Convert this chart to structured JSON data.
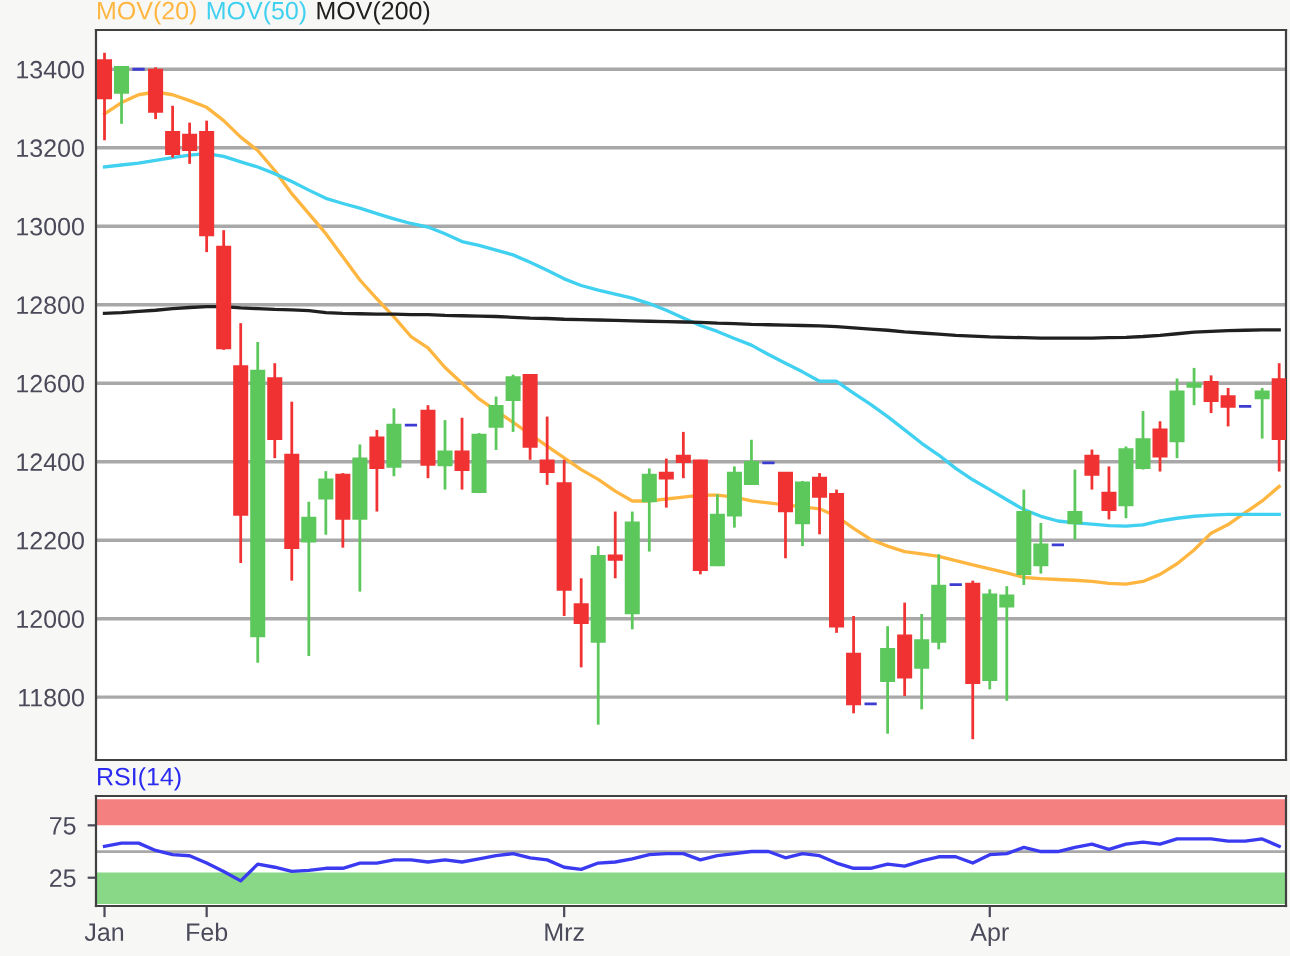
{
  "chart_data": [
    {
      "type": "candlestick",
      "legend": "top left",
      "grid": "y",
      "tick_labels": "y",
      "categories": [
        null,
        null,
        null,
        null,
        null,
        null,
        null,
        null,
        null,
        null,
        null,
        null,
        null,
        null,
        null,
        null,
        null,
        null,
        null,
        null,
        null,
        null,
        null,
        null,
        null,
        null,
        null,
        null,
        null,
        null,
        null,
        null,
        null,
        null,
        null,
        null,
        null,
        null,
        null,
        null,
        null,
        null,
        null,
        null,
        null,
        null,
        null,
        null,
        null,
        null,
        null,
        null,
        null,
        null,
        null,
        null,
        null,
        null,
        null,
        null,
        null,
        null,
        null,
        null,
        null,
        null,
        null,
        null,
        null,
        null
      ],
      "ylim": [
        11640,
        13500
      ],
      "yticks": [
        11800,
        12000,
        12200,
        12400,
        12600,
        12800,
        13000,
        13200,
        13400
      ],
      "ohlc": [
        [
          13422,
          13442,
          13219,
          13327
        ],
        [
          13341,
          13408,
          13261,
          13405
        ],
        [
          13400,
          13400,
          13400,
          13400
        ],
        [
          13398,
          13405,
          13273,
          13293
        ],
        [
          13239,
          13307,
          13175,
          13185
        ],
        [
          13232,
          13264,
          13159,
          13195
        ],
        [
          13239,
          13269,
          12934,
          12978
        ],
        [
          12947,
          12990,
          12685,
          12690
        ],
        [
          12642,
          12753,
          12142,
          12266
        ],
        [
          11956,
          12705,
          11888,
          12631
        ],
        [
          12612,
          12651,
          12409,
          12459
        ],
        [
          12417,
          12553,
          12097,
          12181
        ],
        [
          12198,
          12298,
          11905,
          12256
        ],
        [
          12307,
          12376,
          12214,
          12354
        ],
        [
          12366,
          12371,
          12181,
          12256
        ],
        [
          12256,
          12444,
          12069,
          12407
        ],
        [
          12461,
          12481,
          12273,
          12385
        ],
        [
          12388,
          12536,
          12363,
          12493
        ],
        [
          12493,
          12493,
          12493,
          12493
        ],
        [
          12529,
          12544,
          12358,
          12393
        ],
        [
          12392,
          12506,
          12329,
          12425
        ],
        [
          12425,
          12512,
          12329,
          12380
        ],
        [
          12324,
          12473,
          12320,
          12468
        ],
        [
          12490,
          12566,
          12430,
          12541
        ],
        [
          12558,
          12622,
          12476,
          12614
        ],
        [
          12620,
          12620,
          12405,
          12439
        ],
        [
          12402,
          12515,
          12341,
          12375
        ],
        [
          12344,
          12405,
          12007,
          12075
        ],
        [
          12036,
          12103,
          11876,
          11990
        ],
        [
          11942,
          12185,
          11730,
          12159
        ],
        [
          12160,
          12273,
          12103,
          12151
        ],
        [
          12015,
          12273,
          11973,
          12244
        ],
        [
          12300,
          12383,
          12171,
          12366
        ],
        [
          12371,
          12408,
          12283,
          12358
        ],
        [
          12414,
          12476,
          12358,
          12400
        ],
        [
          12402,
          12405,
          12113,
          12125
        ],
        [
          12137,
          12317,
          12134,
          12264
        ],
        [
          12264,
          12388,
          12232,
          12371
        ],
        [
          12344,
          12456,
          12344,
          12398
        ],
        [
          12397,
          12397,
          12397,
          12397
        ],
        [
          12371,
          12371,
          12154,
          12275
        ],
        [
          12244,
          12351,
          12185,
          12346
        ],
        [
          12358,
          12371,
          12215,
          12312
        ],
        [
          12317,
          12329,
          11964,
          11981
        ],
        [
          11910,
          12007,
          11759,
          11783
        ],
        [
          11783,
          11783,
          11783,
          11783
        ],
        [
          11842,
          11981,
          11707,
          11922
        ],
        [
          11956,
          12041,
          11803,
          11851
        ],
        [
          11876,
          12012,
          11769,
          11944
        ],
        [
          11942,
          12164,
          11922,
          12083
        ],
        [
          12087,
          12087,
          12087,
          12087
        ],
        [
          12088,
          12097,
          11693,
          11837
        ],
        [
          11845,
          12075,
          11820,
          12061
        ],
        [
          12032,
          12083,
          11791,
          12058
        ],
        [
          12115,
          12329,
          12086,
          12271
        ],
        [
          12137,
          12244,
          12115,
          12188
        ],
        [
          12188,
          12188,
          12188,
          12188
        ],
        [
          12244,
          12380,
          12202,
          12271
        ],
        [
          12414,
          12431,
          12329,
          12368
        ],
        [
          12320,
          12388,
          12253,
          12278
        ],
        [
          12290,
          12439,
          12256,
          12431
        ],
        [
          12385,
          12529,
          12380,
          12456
        ],
        [
          12481,
          12503,
          12375,
          12414
        ],
        [
          12453,
          12612,
          12409,
          12578
        ],
        [
          12592,
          12639,
          12544,
          12598
        ],
        [
          12602,
          12620,
          12524,
          12556
        ],
        [
          12566,
          12588,
          12490,
          12541
        ],
        [
          12541,
          12541,
          12541,
          12541
        ],
        [
          12563,
          12588,
          12459,
          12578
        ],
        [
          12609,
          12651,
          12375,
          12459
        ]
      ],
      "colors": [
        "#f03232",
        "#5cc85c",
        "#3c3cd2",
        "#f03232",
        "#f03232",
        "#f03232",
        "#f03232",
        "#f03232",
        "#f03232",
        "#5cc85c",
        "#f03232",
        "#f03232",
        "#5cc85c",
        "#5cc85c",
        "#f03232",
        "#5cc85c",
        "#f03232",
        "#5cc85c",
        "#3c3cd2",
        "#f03232",
        "#5cc85c",
        "#f03232",
        "#5cc85c",
        "#5cc85c",
        "#5cc85c",
        "#f03232",
        "#f03232",
        "#f03232",
        "#f03232",
        "#5cc85c",
        "#f03232",
        "#5cc85c",
        "#5cc85c",
        "#f03232",
        "#f03232",
        "#f03232",
        "#5cc85c",
        "#5cc85c",
        "#5cc85c",
        "#3c3cd2",
        "#f03232",
        "#5cc85c",
        "#f03232",
        "#f03232",
        "#f03232",
        "#3c3cd2",
        "#5cc85c",
        "#f03232",
        "#5cc85c",
        "#5cc85c",
        "#3c3cd2",
        "#f03232",
        "#5cc85c",
        "#5cc85c",
        "#5cc85c",
        "#5cc85c",
        "#3c3cd2",
        "#5cc85c",
        "#f03232",
        "#f03232",
        "#5cc85c",
        "#5cc85c",
        "#f03232",
        "#5cc85c",
        "#5cc85c",
        "#f03232",
        "#f03232",
        "#3c3cd2",
        "#5cc85c",
        "#f03232"
      ],
      "series": [
        {
          "name": "MOV(20)",
          "type": "line",
          "color": "#ffb640",
          "values": [
            13286,
            13315,
            13335,
            13342,
            13335,
            13320,
            13303,
            13269,
            13227,
            13193,
            13142,
            13083,
            13032,
            12981,
            12922,
            12863,
            12815,
            12769,
            12719,
            12690,
            12640,
            12600,
            12560,
            12530,
            12500,
            12470,
            12440,
            12410,
            12380,
            12355,
            12325,
            12300,
            12300,
            12305,
            12310,
            12315,
            12315,
            12310,
            12300,
            12295,
            12290,
            12285,
            12280,
            12261,
            12230,
            12202,
            12185,
            12171,
            12165,
            12159,
            12148,
            12137,
            12127,
            12117,
            12105,
            12102,
            12100,
            12098,
            12095,
            12090,
            12088,
            12095,
            12113,
            12140,
            12175,
            12218,
            12240,
            12270,
            12300,
            12337
          ]
        },
        {
          "name": "MOV(50)",
          "type": "line",
          "color": "#40d0f0",
          "values": [
            13151,
            13156,
            13161,
            13168,
            13175,
            13181,
            13185,
            13178,
            13164,
            13151,
            13134,
            13114,
            13092,
            13071,
            13058,
            13046,
            13032,
            13019,
            13007,
            12998,
            12981,
            12961,
            12951,
            12939,
            12927,
            12908,
            12888,
            12866,
            12849,
            12837,
            12827,
            12817,
            12803,
            12786,
            12766,
            12747,
            12732,
            12714,
            12697,
            12673,
            12651,
            12629,
            12605,
            12605,
            12575,
            12546,
            12515,
            12481,
            12447,
            12417,
            12383,
            12354,
            12329,
            12303,
            12278,
            12261,
            12249,
            12244,
            12241,
            12237,
            12236,
            12239,
            12249,
            12256,
            12261,
            12264,
            12266,
            12266,
            12266,
            12266
          ]
        },
        {
          "name": "MOV(200)",
          "type": "line",
          "color": "#202020",
          "values": [
            12778,
            12780,
            12783,
            12786,
            12790,
            12793,
            12795,
            12795,
            12792,
            12790,
            12788,
            12787,
            12785,
            12780,
            12778,
            12777,
            12776,
            12776,
            12775,
            12775,
            12773,
            12772,
            12771,
            12770,
            12768,
            12766,
            12765,
            12763,
            12762,
            12761,
            12760,
            12759,
            12758,
            12757,
            12756,
            12755,
            12753,
            12752,
            12750,
            12749,
            12748,
            12747,
            12746,
            12744,
            12741,
            12738,
            12735,
            12731,
            12728,
            12725,
            12722,
            12720,
            12718,
            12717,
            12716,
            12715,
            12715,
            12715,
            12715,
            12716,
            12717,
            12719,
            12722,
            12726,
            12730,
            12732,
            12734,
            12735,
            12736,
            12736
          ]
        }
      ]
    },
    {
      "type": "line",
      "title": "RSI(14)",
      "categories": [
        "Jan",
        null,
        null,
        null,
        null,
        null,
        "Feb",
        null,
        null,
        null,
        null,
        null,
        null,
        null,
        null,
        null,
        null,
        null,
        null,
        null,
        null,
        null,
        null,
        null,
        null,
        null,
        null,
        "Mrz",
        null,
        null,
        null,
        null,
        null,
        null,
        null,
        null,
        null,
        null,
        null,
        null,
        null,
        null,
        null,
        null,
        null,
        null,
        null,
        null,
        null,
        null,
        null,
        null,
        "Apr",
        null,
        null,
        null,
        null,
        null,
        null,
        null,
        null,
        null,
        null,
        null,
        null,
        null,
        null,
        null,
        null,
        null
      ],
      "ylim": [
        -2,
        103
      ],
      "yticks": [
        25,
        75
      ],
      "grid": false,
      "bands": [
        {
          "axis": "y",
          "from": 75,
          "to": 100,
          "color": "#f58080"
        },
        {
          "axis": "y",
          "from": 0,
          "to": 30,
          "color": "#88d888"
        }
      ],
      "ref_lines": [
        {
          "axis": "y",
          "value": 50,
          "color": "#a8a8a8"
        }
      ],
      "series": [
        {
          "color": "#3a3af0",
          "values": [
            55,
            58,
            58,
            51,
            47,
            46,
            39,
            31,
            22,
            38,
            35,
            31,
            32,
            34,
            34,
            39,
            39,
            42,
            42,
            40,
            42,
            40,
            43,
            46,
            48,
            44,
            42,
            35,
            33,
            39,
            40,
            43,
            47,
            48,
            48,
            42,
            46,
            48,
            50,
            50,
            44,
            48,
            46,
            39,
            34,
            34,
            38,
            36,
            41,
            45,
            45,
            39,
            47,
            48,
            54,
            50,
            50,
            54,
            57,
            52,
            57,
            59,
            57,
            62,
            62,
            62,
            60,
            60,
            62,
            55
          ]
        }
      ]
    }
  ]
}
